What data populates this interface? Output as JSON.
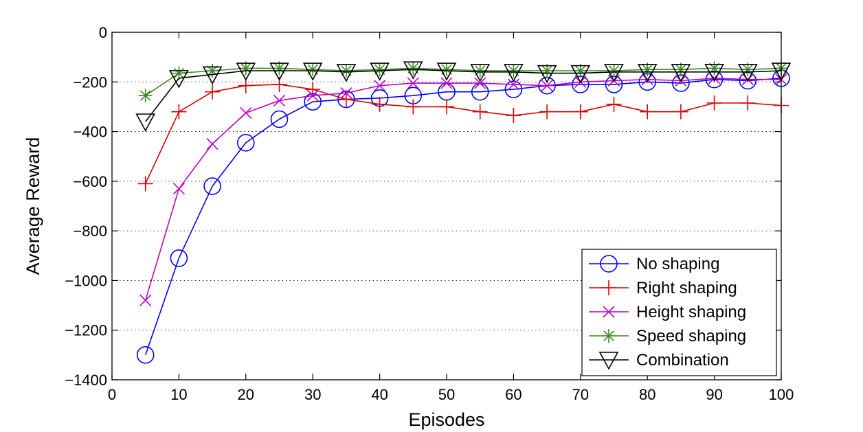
{
  "chart_data": {
    "type": "line",
    "title": "",
    "xlabel": "Episodes",
    "ylabel": "Average Reward",
    "xlim": [
      0,
      100
    ],
    "ylim": [
      -1400,
      0
    ],
    "xticks": [
      0,
      10,
      20,
      30,
      40,
      50,
      60,
      70,
      80,
      90,
      100
    ],
    "yticks": [
      0,
      -200,
      -400,
      -600,
      -800,
      -1000,
      -1200,
      -1400
    ],
    "xtick_labels": [
      "0",
      "10",
      "20",
      "30",
      "40",
      "50",
      "60",
      "70",
      "80",
      "90",
      "100"
    ],
    "ytick_labels": [
      "0",
      "−200",
      "−400",
      "−600",
      "−800",
      "−1000",
      "−1200",
      "−1400"
    ],
    "grid": "horizontal-dotted",
    "legend_position": "bottom-right",
    "x": [
      5,
      10,
      15,
      20,
      25,
      30,
      35,
      40,
      45,
      50,
      55,
      60,
      65,
      70,
      75,
      80,
      85,
      90,
      95,
      100
    ],
    "series": [
      {
        "name": "No shaping",
        "color": "#0000ff",
        "marker": "circle",
        "values": [
          -1300,
          -910,
          -620,
          -445,
          -350,
          -280,
          -270,
          -265,
          -255,
          -240,
          -240,
          -230,
          -215,
          -210,
          -210,
          -200,
          -205,
          -190,
          -195,
          -185
        ]
      },
      {
        "name": "Right shaping",
        "color": "#dd0000",
        "marker": "plus",
        "values": [
          -610,
          -320,
          -240,
          -215,
          -210,
          -230,
          -270,
          -290,
          -300,
          -300,
          -320,
          -335,
          -320,
          -320,
          -290,
          -320,
          -320,
          -285,
          -285,
          -295
        ]
      },
      {
        "name": "Height shaping",
        "color": "#bf00bf",
        "marker": "cross",
        "values": [
          -1080,
          -630,
          -450,
          -325,
          -275,
          -255,
          -245,
          -215,
          -205,
          -205,
          -205,
          -210,
          -215,
          -200,
          -195,
          -190,
          -195,
          -185,
          -190,
          -190
        ]
      },
      {
        "name": "Speed shaping",
        "color": "#3a8a22",
        "marker": "star",
        "values": [
          -255,
          -165,
          -155,
          -145,
          -145,
          -150,
          -155,
          -150,
          -145,
          -150,
          -155,
          -155,
          -155,
          -155,
          -155,
          -150,
          -150,
          -145,
          -150,
          -145
        ]
      },
      {
        "name": "Combination",
        "color": "#000000",
        "marker": "triangle-down",
        "values": [
          -360,
          -185,
          -170,
          -155,
          -155,
          -155,
          -160,
          -155,
          -150,
          -155,
          -160,
          -160,
          -165,
          -165,
          -160,
          -160,
          -160,
          -160,
          -160,
          -155
        ]
      }
    ]
  }
}
